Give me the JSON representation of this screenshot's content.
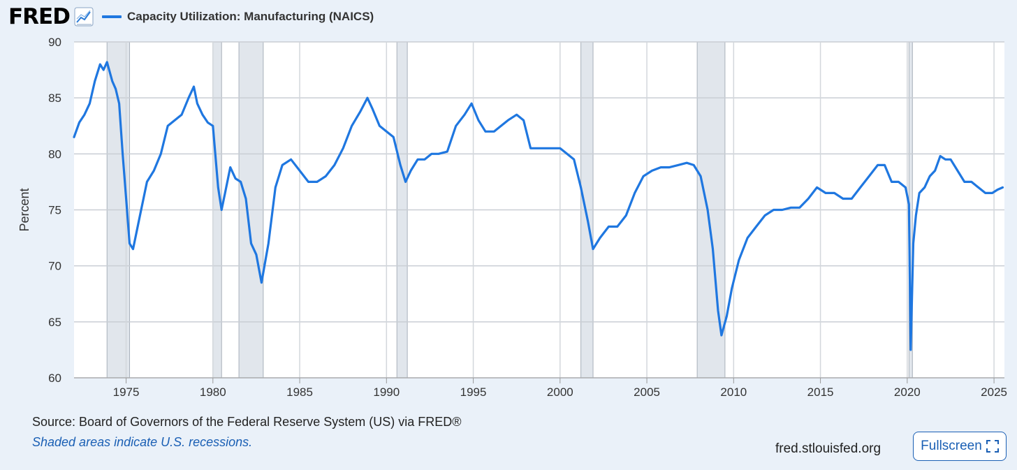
{
  "header": {
    "logo_text": "FRED",
    "series_label": "Capacity Utilization: Manufacturing (NAICS)"
  },
  "footer": {
    "source": "Source: Board of Governors of the Federal Reserve System (US) via FRED®",
    "note": "Shaded areas indicate U.S. recessions.",
    "site": "fred.stlouisfed.org",
    "fullscreen_label": "Fullscreen"
  },
  "colors": {
    "line": "#1f77e0",
    "recession": "#e1e6ec",
    "plot_bg": "#ffffff",
    "page_bg": "#eaf1f9",
    "accent": "#1a5fb4"
  },
  "icons": {
    "logo_chart": "line-chart-icon",
    "fullscreen": "expand-icon"
  },
  "chart_data": {
    "type": "line",
    "title": "",
    "xlabel": "",
    "ylabel": "Percent",
    "xlim": [
      1972.0,
      2025.6
    ],
    "ylim": [
      60,
      90
    ],
    "yticks": [
      60,
      65,
      70,
      75,
      80,
      85,
      90
    ],
    "xticks": [
      1975,
      1980,
      1985,
      1990,
      1995,
      2000,
      2005,
      2010,
      2015,
      2020,
      2025
    ],
    "grid": true,
    "legend": "top-left",
    "recessions": [
      [
        1973.9,
        1975.2
      ],
      [
        1980.0,
        1980.5
      ],
      [
        1981.5,
        1982.9
      ],
      [
        1990.6,
        1991.2
      ],
      [
        2001.2,
        2001.9
      ],
      [
        2007.9,
        2009.5
      ],
      [
        2020.1,
        2020.3
      ]
    ],
    "series": [
      {
        "name": "Capacity Utilization: Manufacturing (NAICS)",
        "x": [
          1972.0,
          1972.3,
          1972.6,
          1972.9,
          1973.2,
          1973.5,
          1973.7,
          1973.9,
          1974.2,
          1974.4,
          1974.6,
          1974.8,
          1975.0,
          1975.2,
          1975.4,
          1975.8,
          1976.2,
          1976.6,
          1977.0,
          1977.4,
          1977.8,
          1978.2,
          1978.6,
          1978.9,
          1979.1,
          1979.4,
          1979.7,
          1980.0,
          1980.3,
          1980.5,
          1980.7,
          1981.0,
          1981.3,
          1981.6,
          1981.9,
          1982.2,
          1982.5,
          1982.8,
          1983.2,
          1983.6,
          1984.0,
          1984.5,
          1985.0,
          1985.5,
          1986.0,
          1986.5,
          1987.0,
          1987.5,
          1988.0,
          1988.5,
          1988.9,
          1989.2,
          1989.6,
          1990.0,
          1990.4,
          1990.8,
          1991.1,
          1991.4,
          1991.8,
          1992.2,
          1992.6,
          1993.0,
          1993.5,
          1994.0,
          1994.5,
          1994.9,
          1995.3,
          1995.7,
          1996.2,
          1996.6,
          1997.0,
          1997.5,
          1997.9,
          1998.3,
          1998.6,
          1999.0,
          1999.5,
          2000.0,
          2000.4,
          2000.8,
          2001.2,
          2001.6,
          2001.9,
          2002.3,
          2002.8,
          2003.3,
          2003.8,
          2004.3,
          2004.8,
          2005.3,
          2005.8,
          2006.3,
          2006.8,
          2007.3,
          2007.7,
          2008.1,
          2008.5,
          2008.8,
          2009.1,
          2009.3,
          2009.6,
          2009.9,
          2010.3,
          2010.8,
          2011.3,
          2011.8,
          2012.3,
          2012.8,
          2013.3,
          2013.8,
          2014.3,
          2014.8,
          2015.3,
          2015.8,
          2016.3,
          2016.8,
          2017.3,
          2017.8,
          2018.3,
          2018.7,
          2019.1,
          2019.5,
          2019.9,
          2020.1,
          2020.2,
          2020.35,
          2020.5,
          2020.7,
          2021.0,
          2021.3,
          2021.6,
          2021.9,
          2022.2,
          2022.5,
          2022.9,
          2023.3,
          2023.7,
          2024.1,
          2024.5,
          2024.9,
          2025.2,
          2025.5
        ],
        "values": [
          81.5,
          82.8,
          83.5,
          84.5,
          86.5,
          88.0,
          87.5,
          88.2,
          86.5,
          85.8,
          84.5,
          80.0,
          76.0,
          72.0,
          71.5,
          74.5,
          77.5,
          78.5,
          80.0,
          82.5,
          83.0,
          83.5,
          85.0,
          86.0,
          84.5,
          83.5,
          82.8,
          82.5,
          77.0,
          75.0,
          76.5,
          78.8,
          77.8,
          77.5,
          76.0,
          72.0,
          71.0,
          68.5,
          72.0,
          77.0,
          79.0,
          79.5,
          78.5,
          77.5,
          77.5,
          78.0,
          79.0,
          80.5,
          82.5,
          83.8,
          85.0,
          84.0,
          82.5,
          82.0,
          81.5,
          79.0,
          77.5,
          78.5,
          79.5,
          79.5,
          80.0,
          80.0,
          80.2,
          82.5,
          83.5,
          84.5,
          83.0,
          82.0,
          82.0,
          82.5,
          83.0,
          83.5,
          83.0,
          80.5,
          80.5,
          80.5,
          80.5,
          80.5,
          80.0,
          79.5,
          77.0,
          74.0,
          71.5,
          72.5,
          73.5,
          73.5,
          74.5,
          76.5,
          78.0,
          78.5,
          78.8,
          78.8,
          79.0,
          79.2,
          79.0,
          78.0,
          75.0,
          71.5,
          66.0,
          63.8,
          65.5,
          68.0,
          70.5,
          72.5,
          73.5,
          74.5,
          75.0,
          75.0,
          75.2,
          75.2,
          76.0,
          77.0,
          76.5,
          76.5,
          76.0,
          76.0,
          77.0,
          78.0,
          79.0,
          79.0,
          77.5,
          77.5,
          77.0,
          75.5,
          62.5,
          72.0,
          74.5,
          76.5,
          77.0,
          78.0,
          78.5,
          79.8,
          79.5,
          79.5,
          78.5,
          77.5,
          77.5,
          77.0,
          76.5,
          76.5,
          76.8,
          77.0
        ]
      }
    ]
  }
}
